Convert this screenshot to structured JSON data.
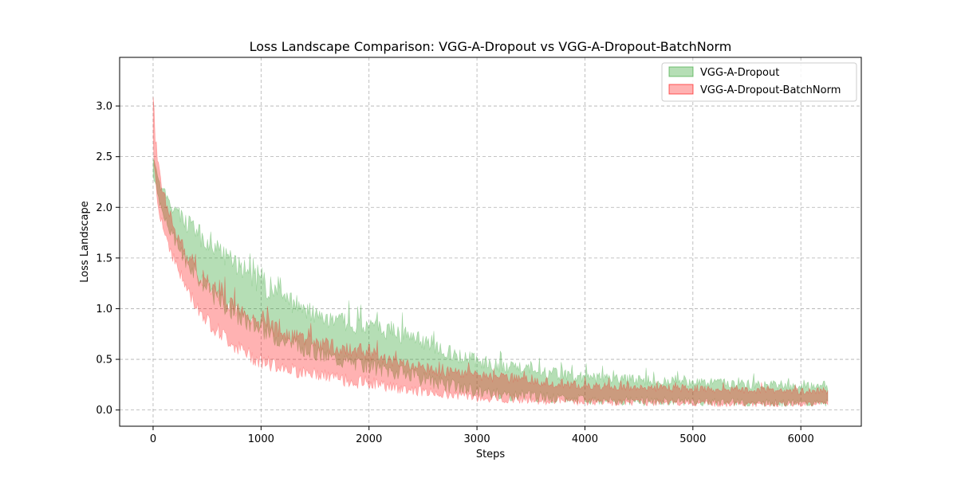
{
  "chart_data": {
    "type": "area",
    "title": "Loss Landscape Comparison: VGG-A-Dropout vs VGG-A-Dropout-BatchNorm",
    "xlabel": "Steps",
    "ylabel": "Loss Landscape",
    "xlim": [
      -310,
      6560
    ],
    "ylim": [
      -0.16,
      3.48
    ],
    "xticks": [
      0,
      1000,
      2000,
      3000,
      4000,
      5000,
      6000
    ],
    "yticks": [
      0.0,
      0.5,
      1.0,
      1.5,
      2.0,
      2.5,
      3.0
    ],
    "xtick_labels": [
      "0",
      "1000",
      "2000",
      "3000",
      "4000",
      "5000",
      "6000"
    ],
    "ytick_labels": [
      "0.0",
      "0.5",
      "1.0",
      "1.5",
      "2.0",
      "2.5",
      "3.0"
    ],
    "grid": true,
    "legend_position": "upper-right",
    "series": [
      {
        "name": "VGG-A-Dropout",
        "color": "#2ca02c",
        "opacity": 0.35,
        "x": [
          0,
          50,
          100,
          200,
          300,
          400,
          500,
          600,
          700,
          800,
          900,
          1000,
          1200,
          1400,
          1600,
          1800,
          2000,
          2200,
          2400,
          2600,
          2800,
          3000,
          3200,
          3400,
          3600,
          3800,
          4000,
          4500,
          5000,
          5500,
          6000,
          6250
        ],
        "upper": [
          2.55,
          2.3,
          2.2,
          2.05,
          1.95,
          1.85,
          1.8,
          1.7,
          1.6,
          1.55,
          1.45,
          1.35,
          1.2,
          1.1,
          1.0,
          0.95,
          0.9,
          0.9,
          0.8,
          0.72,
          0.65,
          0.55,
          0.5,
          0.48,
          0.45,
          0.4,
          0.38,
          0.35,
          0.32,
          0.3,
          0.28,
          0.27
        ],
        "lower": [
          2.3,
          2.05,
          1.85,
          1.6,
          1.4,
          1.25,
          1.1,
          1.0,
          0.9,
          0.82,
          0.75,
          0.7,
          0.6,
          0.52,
          0.45,
          0.4,
          0.35,
          0.3,
          0.25,
          0.2,
          0.15,
          0.12,
          0.1,
          0.08,
          0.07,
          0.06,
          0.05,
          0.04,
          0.04,
          0.03,
          0.03,
          0.03
        ]
      },
      {
        "name": "VGG-A-Dropout-BatchNorm",
        "color": "#ff0000",
        "opacity": 0.3,
        "x": [
          0,
          10,
          30,
          50,
          100,
          200,
          300,
          400,
          500,
          600,
          700,
          800,
          900,
          1000,
          1200,
          1400,
          1600,
          1800,
          2000,
          2200,
          2400,
          2600,
          2800,
          3000,
          3200,
          3400,
          3600,
          3800,
          4000,
          4500,
          5000,
          5500,
          6000,
          6250
        ],
        "upper": [
          3.32,
          3.0,
          2.6,
          2.45,
          2.2,
          1.85,
          1.6,
          1.45,
          1.35,
          1.25,
          1.15,
          1.05,
          1.0,
          0.95,
          0.85,
          0.78,
          0.72,
          0.68,
          0.65,
          0.55,
          0.5,
          0.45,
          0.42,
          0.4,
          0.38,
          0.35,
          0.33,
          0.3,
          0.28,
          0.26,
          0.25,
          0.23,
          0.22,
          0.22
        ],
        "lower": [
          2.6,
          2.3,
          2.1,
          1.95,
          1.7,
          1.4,
          1.15,
          0.95,
          0.8,
          0.7,
          0.6,
          0.52,
          0.45,
          0.4,
          0.35,
          0.3,
          0.26,
          0.22,
          0.2,
          0.17,
          0.14,
          0.12,
          0.1,
          0.08,
          0.07,
          0.06,
          0.05,
          0.05,
          0.04,
          0.04,
          0.03,
          0.03,
          0.03,
          0.03
        ]
      }
    ]
  }
}
